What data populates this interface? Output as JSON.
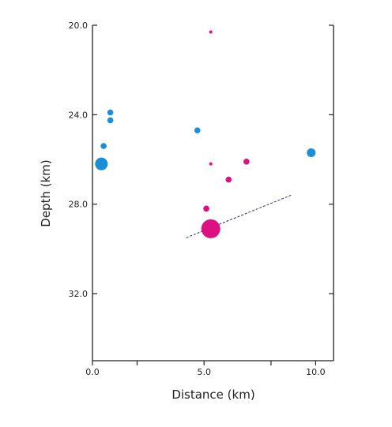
{
  "chart_data": {
    "type": "scatter",
    "title": "",
    "xlabel": "Distance  (km)",
    "ylabel": "Depth  (km)",
    "xlim": [
      0,
      10.8
    ],
    "ylim": [
      20,
      35
    ],
    "y_inverted": true,
    "grid": false,
    "legend": "none",
    "x_ticks": [
      0,
      2,
      5,
      8,
      10
    ],
    "x_tick_labels": [
      "0.0",
      "",
      "5.0",
      "",
      "10.0"
    ],
    "y_ticks": [
      20,
      24,
      28,
      32
    ],
    "y_tick_labels": [
      "20.0",
      "24.0",
      "28.0",
      "32.0"
    ],
    "series": [
      {
        "color": "#1a8ed6",
        "points": [
          {
            "x": 0.8,
            "y": 23.9,
            "size": 1
          },
          {
            "x": 0.8,
            "y": 24.25,
            "size": 1
          },
          {
            "x": 0.5,
            "y": 25.4,
            "size": 1
          },
          {
            "x": 0.4,
            "y": 26.2,
            "size": 3
          },
          {
            "x": 4.7,
            "y": 24.7,
            "size": 1
          },
          {
            "x": 9.8,
            "y": 25.7,
            "size": 2
          }
        ]
      },
      {
        "color": "#de0f82",
        "points": [
          {
            "x": 5.3,
            "y": 20.3,
            "size": 0
          },
          {
            "x": 5.3,
            "y": 26.2,
            "size": 0
          },
          {
            "x": 6.9,
            "y": 26.1,
            "size": 1
          },
          {
            "x": 6.1,
            "y": 26.9,
            "size": 1
          },
          {
            "x": 5.1,
            "y": 28.2,
            "size": 1
          },
          {
            "x": 5.3,
            "y": 29.1,
            "size": 4
          }
        ]
      }
    ],
    "reference_line": {
      "color": "#2a2a7a",
      "dash": true,
      "x": [
        4.2,
        8.9
      ],
      "y": [
        29.5,
        27.6
      ]
    }
  }
}
